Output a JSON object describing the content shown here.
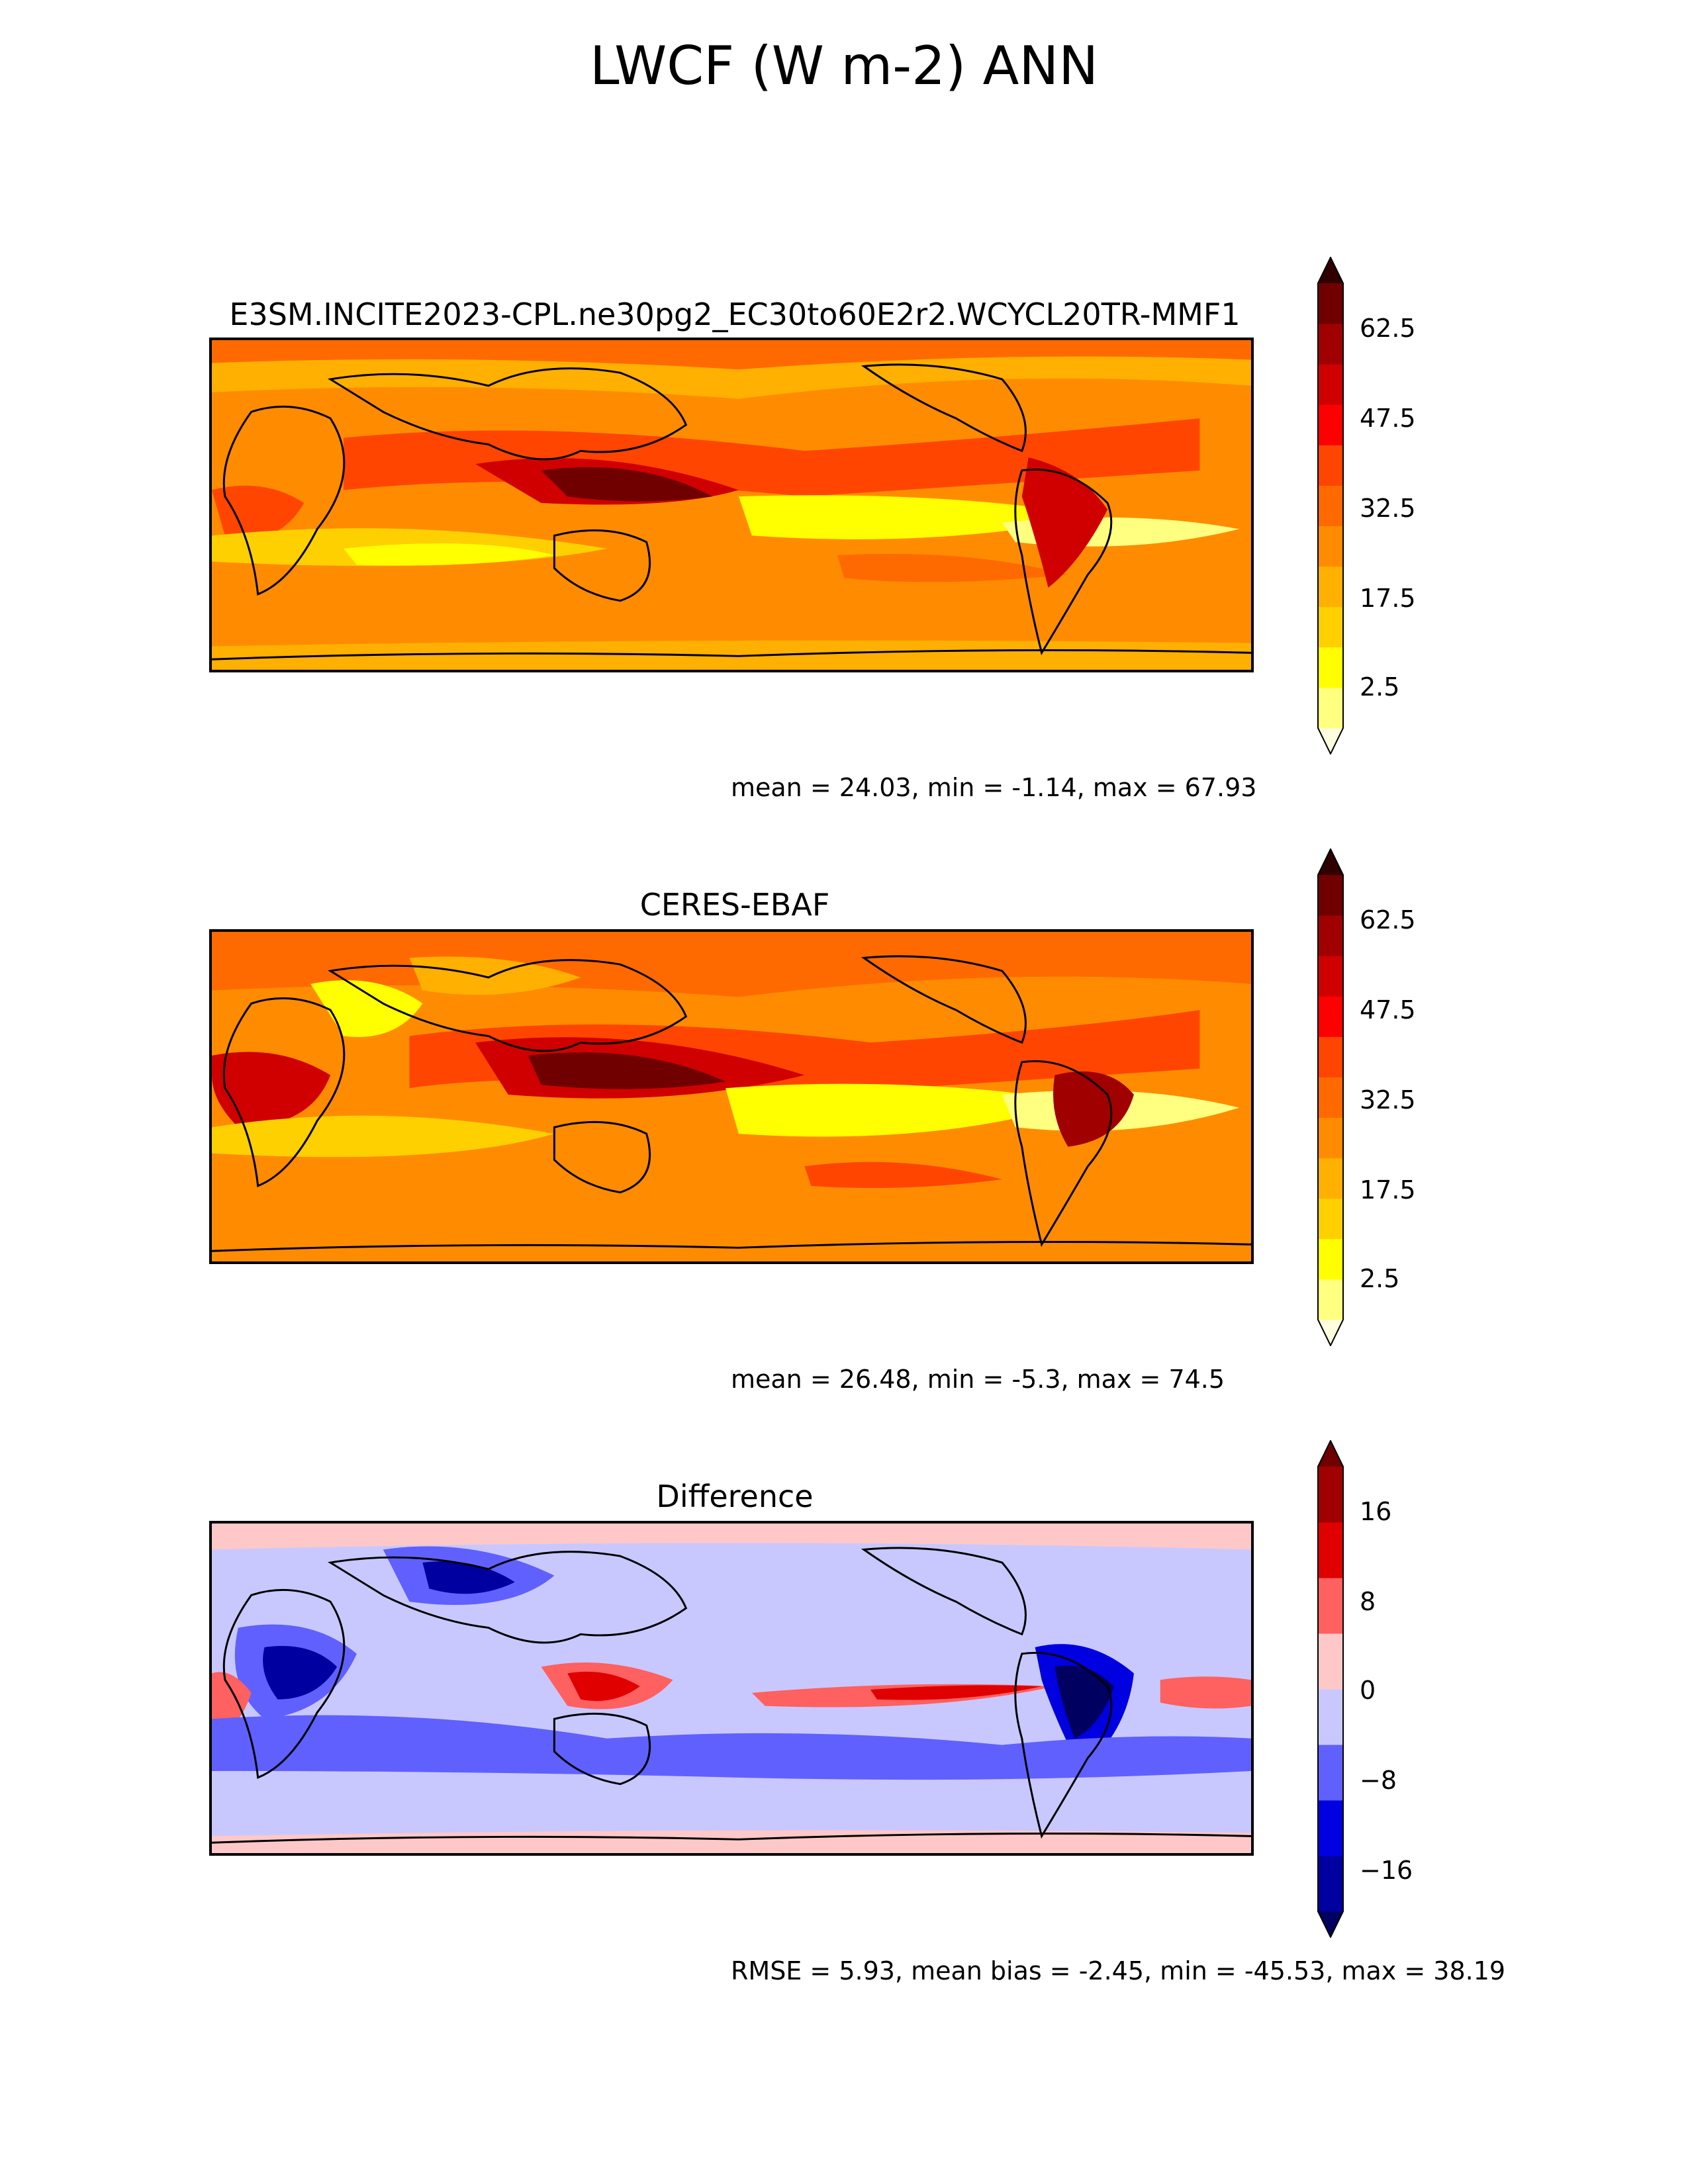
{
  "figure": {
    "title": "LWCF (W m-2) ANN"
  },
  "panels": [
    {
      "title": "E3SM.INCITE2023-CPL.ne30pg2_EC30to60E2r2.WCYCL20TR-MMF1",
      "stats": "mean = 24.03, min = -1.14, max = 67.93",
      "colorbar": {
        "ticks": [
          "62.5",
          "47.5",
          "32.5",
          "17.5",
          "2.5"
        ],
        "colors": [
          "#ffffe0",
          "#ffff80",
          "#ffff00",
          "#ffd000",
          "#ffb000",
          "#ff8c00",
          "#ff6a00",
          "#ff4500",
          "#ff0000",
          "#d00000",
          "#a00000",
          "#700000",
          "#300000"
        ]
      }
    },
    {
      "title": "CERES-EBAF",
      "stats": "mean = 26.48, min = -5.3, max = 74.5",
      "colorbar": {
        "ticks": [
          "62.5",
          "47.5",
          "32.5",
          "17.5",
          "2.5"
        ],
        "colors": [
          "#ffffe0",
          "#ffff80",
          "#ffff00",
          "#ffd000",
          "#ffb000",
          "#ff8c00",
          "#ff6a00",
          "#ff4500",
          "#ff0000",
          "#d00000",
          "#a00000",
          "#700000",
          "#300000"
        ]
      }
    },
    {
      "title": "Difference",
      "stats": "RMSE = 5.93, mean bias = -2.45, min = -45.53, max = 38.19",
      "colorbar": {
        "ticks": [
          "16",
          "8",
          "0",
          "−16"
        ],
        "minor_tick": "−8",
        "colors": [
          "#000060",
          "#0000a0",
          "#0000e0",
          "#6060ff",
          "#c8c8ff",
          "#ffc8c8",
          "#ff6060",
          "#e00000",
          "#a00000",
          "#700000"
        ]
      }
    }
  ]
}
